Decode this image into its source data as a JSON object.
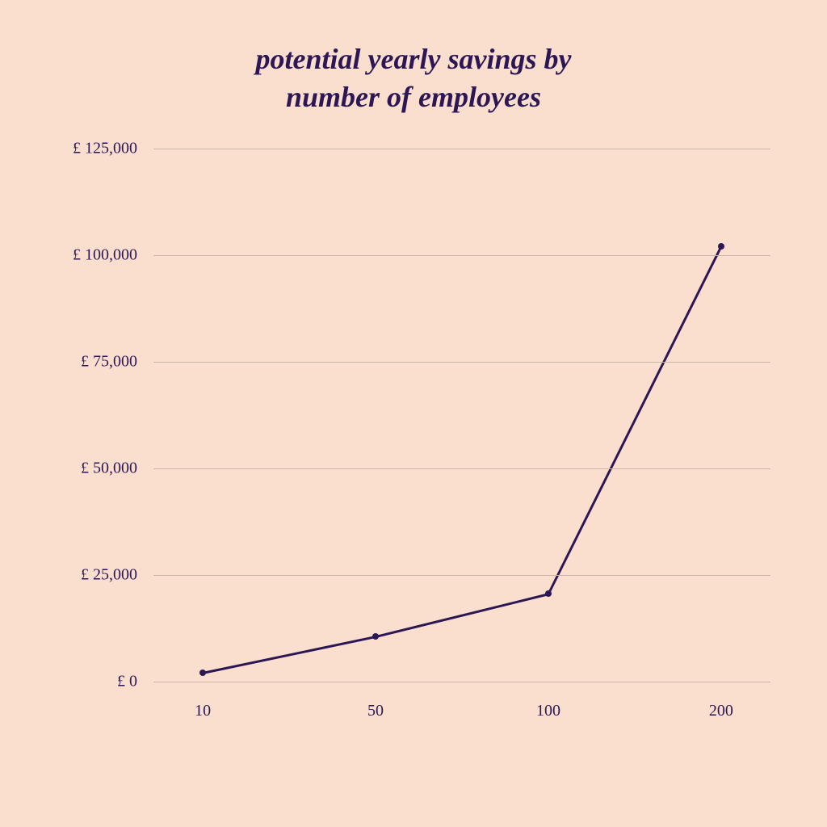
{
  "chart": {
    "type": "line",
    "title_line1": "potential yearly savings by",
    "title_line2": "number of employees",
    "title_fontsize": 36,
    "title_color": "#2d1654",
    "background_color": "#fadfcf",
    "line_color": "#2d1654",
    "line_width": 3,
    "marker_radius": 4,
    "marker_color": "#2d1654",
    "grid_color": "#c9b5a8",
    "axis_label_color": "#2d1654",
    "axis_label_fontsize": 20,
    "x_categories": [
      "10",
      "50",
      "100",
      "200"
    ],
    "y_values": [
      2000,
      10500,
      20500,
      102000
    ],
    "y_ticks": [
      {
        "value": 0,
        "label": "£ 0"
      },
      {
        "value": 25000,
        "label": "£ 25,000"
      },
      {
        "value": 50000,
        "label": "£ 50,000"
      },
      {
        "value": 75000,
        "label": "£ 75,000"
      },
      {
        "value": 100000,
        "label": "£ 100,000"
      },
      {
        "value": 125000,
        "label": "£ 125,000"
      }
    ],
    "y_min": 0,
    "y_max": 125000,
    "plot_inner_padding_left_pct": 8,
    "plot_inner_padding_right_pct": 8
  }
}
